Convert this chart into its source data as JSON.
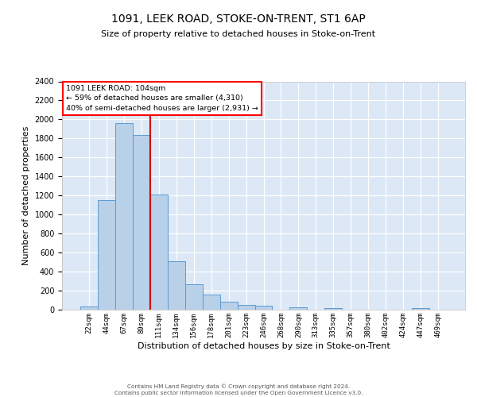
{
  "title": "1091, LEEK ROAD, STOKE-ON-TRENT, ST1 6AP",
  "subtitle": "Size of property relative to detached houses in Stoke-on-Trent",
  "xlabel": "Distribution of detached houses by size in Stoke-on-Trent",
  "ylabel": "Number of detached properties",
  "categories": [
    "22sqm",
    "44sqm",
    "67sqm",
    "89sqm",
    "111sqm",
    "134sqm",
    "156sqm",
    "178sqm",
    "201sqm",
    "223sqm",
    "246sqm",
    "268sqm",
    "290sqm",
    "313sqm",
    "335sqm",
    "357sqm",
    "380sqm",
    "402sqm",
    "424sqm",
    "447sqm",
    "469sqm"
  ],
  "values": [
    30,
    1150,
    1960,
    1840,
    1210,
    510,
    265,
    155,
    80,
    48,
    42,
    0,
    22,
    0,
    15,
    0,
    0,
    0,
    0,
    20,
    0
  ],
  "bar_color": "#b8d0e8",
  "bar_edge_color": "#5b9bd5",
  "bg_color": "#dce8f5",
  "grid_color": "#ffffff",
  "vline_pos": 3.5,
  "vline_color": "#cc0000",
  "annotation_line1": "1091 LEEK ROAD: 104sqm",
  "annotation_line2": "← 59% of detached houses are smaller (4,310)",
  "annotation_line3": "40% of semi-detached houses are larger (2,931) →",
  "ylim_max": 2400,
  "yticks": [
    0,
    200,
    400,
    600,
    800,
    1000,
    1200,
    1400,
    1600,
    1800,
    2000,
    2200,
    2400
  ],
  "footer1": "Contains HM Land Registry data © Crown copyright and database right 2024.",
  "footer2": "Contains public sector information licensed under the Open Government Licence v3.0.",
  "title_fontsize": 10,
  "subtitle_fontsize": 8,
  "ylabel_fontsize": 8,
  "xlabel_fontsize": 8,
  "tick_fontsize": 7,
  "xtick_fontsize": 6.5
}
